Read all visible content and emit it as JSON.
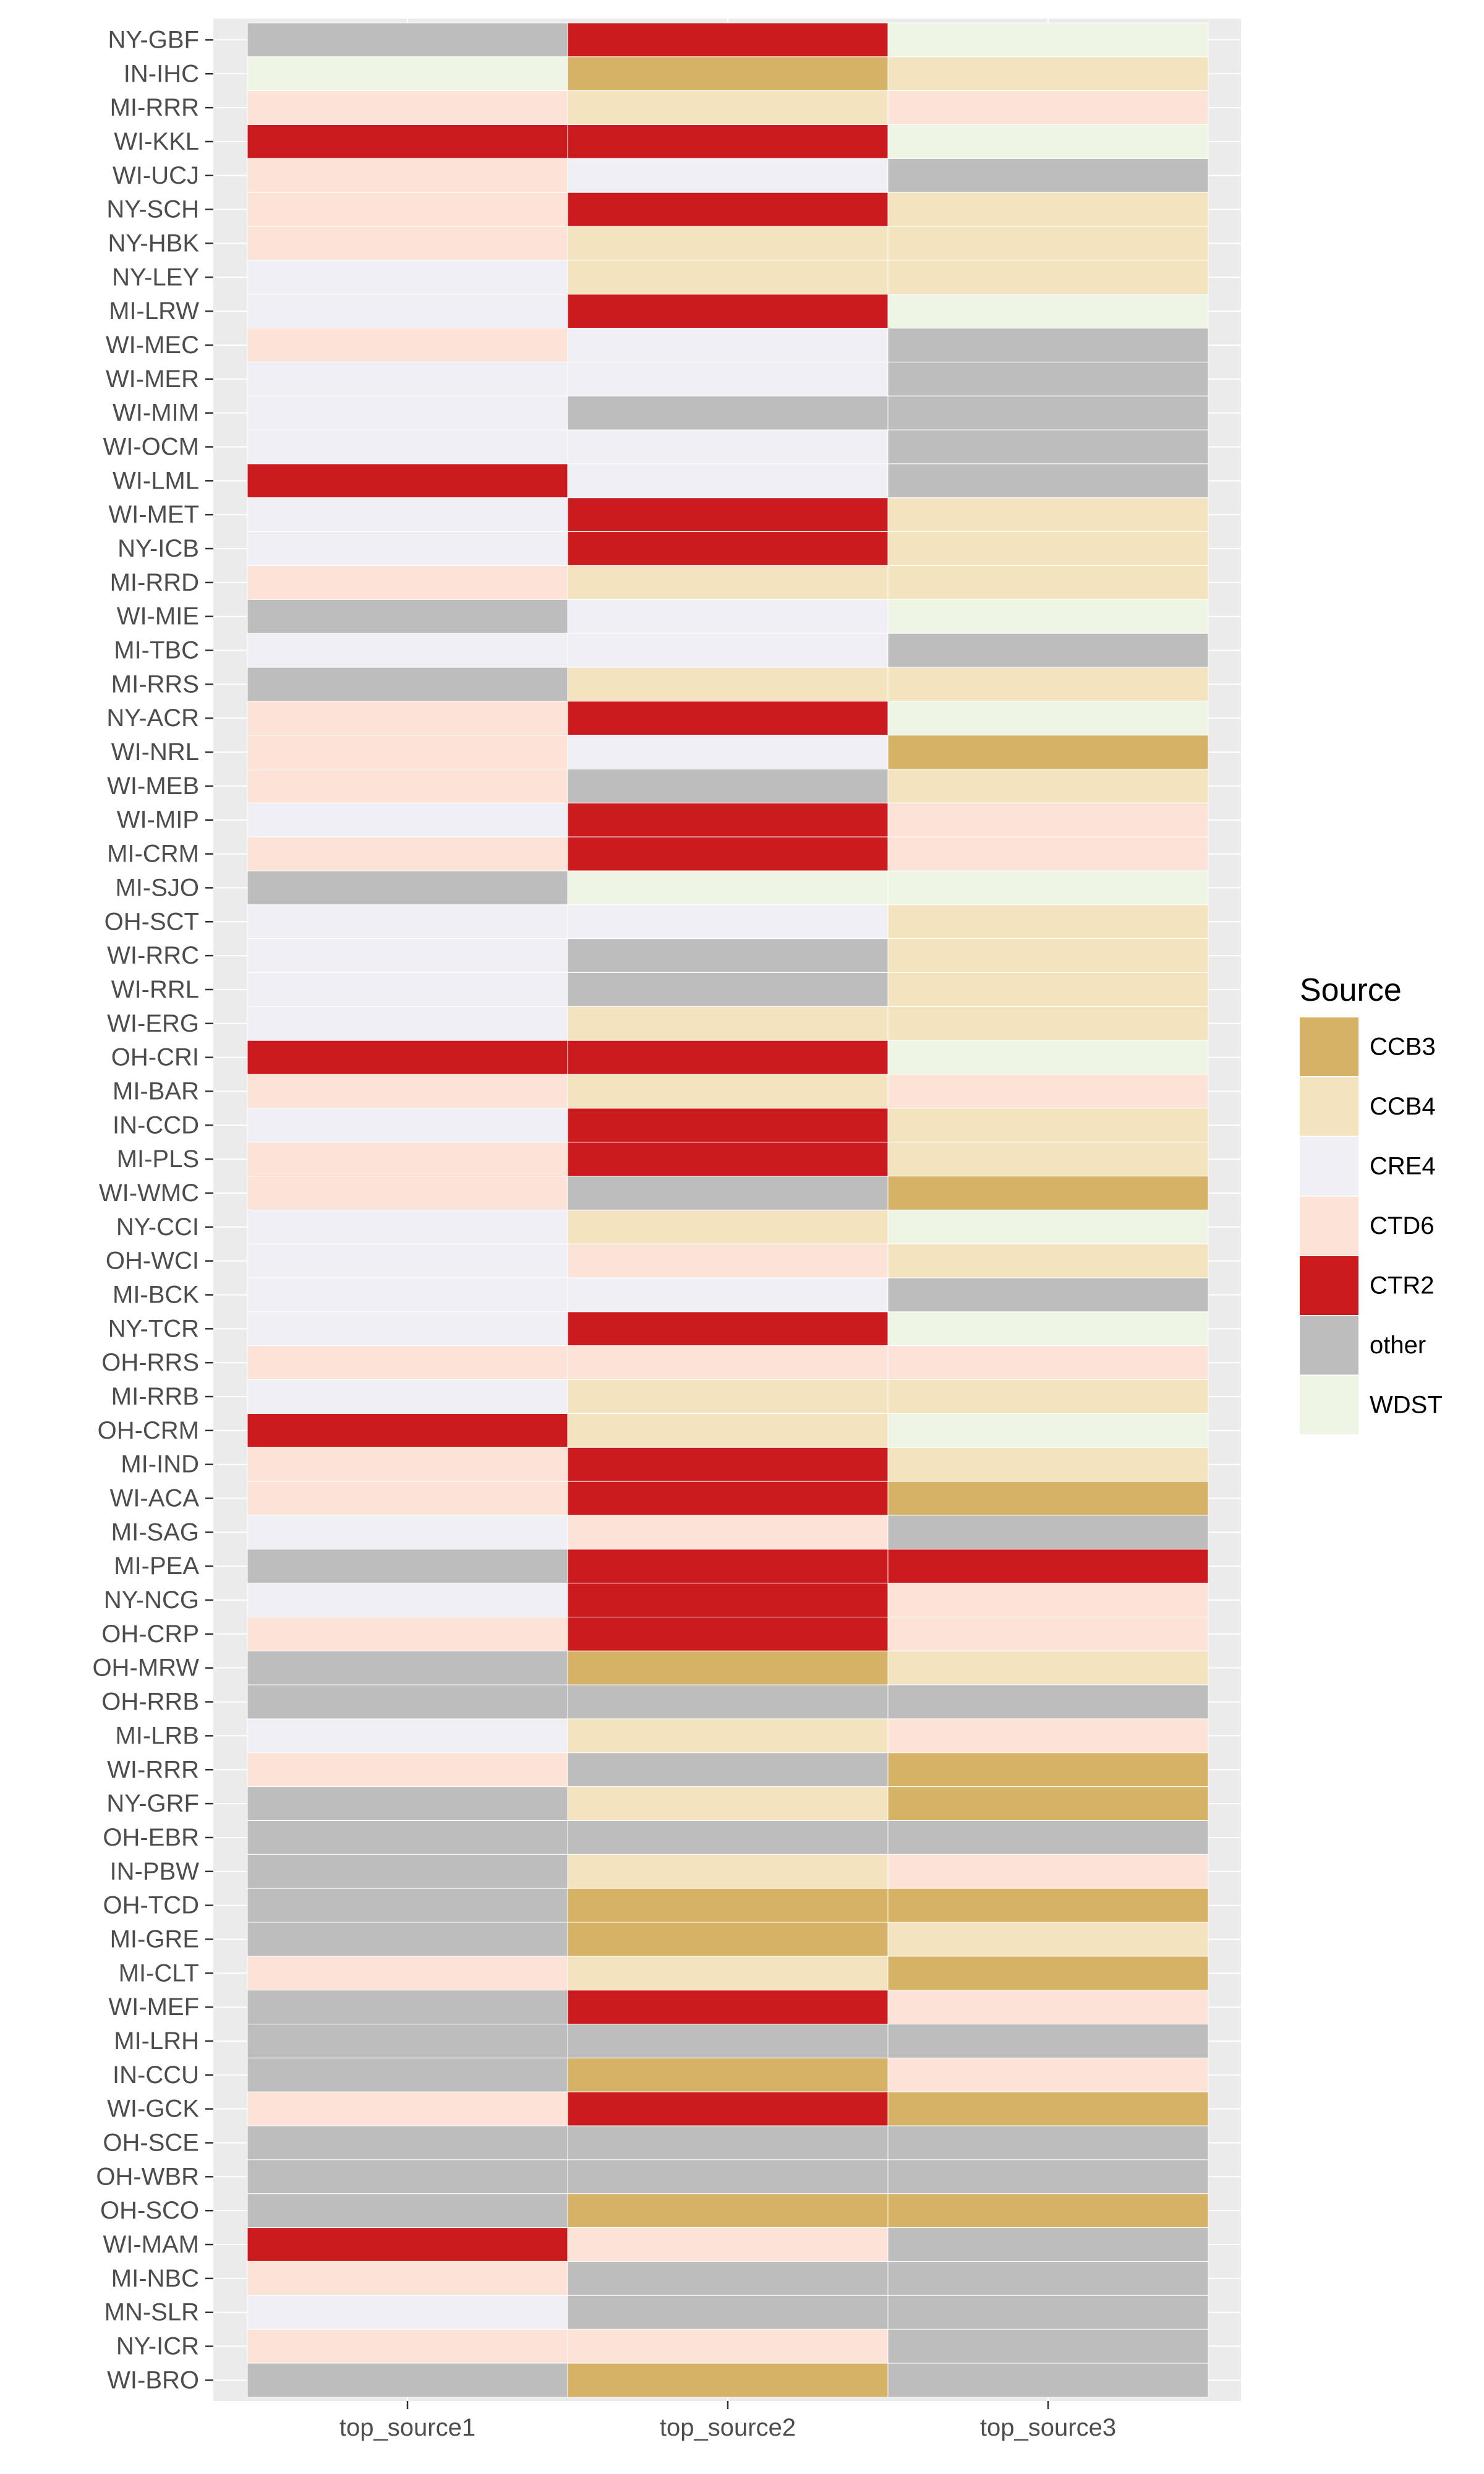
{
  "chart_data": {
    "type": "heatmap",
    "x": [
      "top_source1",
      "top_source2",
      "top_source3"
    ],
    "y": [
      "NY-GBF",
      "IN-IHC",
      "MI-RRR",
      "WI-KKL",
      "WI-UCJ",
      "NY-SCH",
      "NY-HBK",
      "NY-LEY",
      "MI-LRW",
      "WI-MEC",
      "WI-MER",
      "WI-MIM",
      "WI-OCM",
      "WI-LML",
      "WI-MET",
      "NY-ICB",
      "MI-RRD",
      "WI-MIE",
      "MI-TBC",
      "MI-RRS",
      "NY-ACR",
      "WI-NRL",
      "WI-MEB",
      "WI-MIP",
      "MI-CRM",
      "MI-SJO",
      "OH-SCT",
      "WI-RRC",
      "WI-RRL",
      "WI-ERG",
      "OH-CRI",
      "MI-BAR",
      "IN-CCD",
      "MI-PLS",
      "WI-WMC",
      "NY-CCI",
      "OH-WCI",
      "MI-BCK",
      "NY-TCR",
      "OH-RRS",
      "MI-RRB",
      "OH-CRM",
      "MI-IND",
      "WI-ACA",
      "MI-SAG",
      "MI-PEA",
      "NY-NCG",
      "OH-CRP",
      "OH-MRW",
      "OH-RRB",
      "MI-LRB",
      "WI-RRR",
      "NY-GRF",
      "OH-EBR",
      "IN-PBW",
      "OH-TCD",
      "MI-GRE",
      "MI-CLT",
      "WI-MEF",
      "MI-LRH",
      "IN-CCU",
      "WI-GCK",
      "OH-SCE",
      "OH-WBR",
      "OH-SCO",
      "WI-MAM",
      "MI-NBC",
      "MN-SLR",
      "NY-ICR",
      "WI-BRO"
    ],
    "cells": [
      [
        "other",
        "CTR2",
        "WDST"
      ],
      [
        "WDST",
        "CCB3",
        "CCB4"
      ],
      [
        "CTD6",
        "CCB4",
        "CTD6"
      ],
      [
        "CTR2",
        "CTR2",
        "WDST"
      ],
      [
        "CTD6",
        "CRE4",
        "other"
      ],
      [
        "CTD6",
        "CTR2",
        "CCB4"
      ],
      [
        "CTD6",
        "CCB4",
        "CCB4"
      ],
      [
        "CRE4",
        "CCB4",
        "CCB4"
      ],
      [
        "CRE4",
        "CTR2",
        "WDST"
      ],
      [
        "CTD6",
        "CRE4",
        "other"
      ],
      [
        "CRE4",
        "CRE4",
        "other"
      ],
      [
        "CRE4",
        "other",
        "other"
      ],
      [
        "CRE4",
        "CRE4",
        "other"
      ],
      [
        "CTR2",
        "CRE4",
        "other"
      ],
      [
        "CRE4",
        "CTR2",
        "CCB4"
      ],
      [
        "CRE4",
        "CTR2",
        "CCB4"
      ],
      [
        "CTD6",
        "CCB4",
        "CCB4"
      ],
      [
        "other",
        "CRE4",
        "WDST"
      ],
      [
        "CRE4",
        "CRE4",
        "other"
      ],
      [
        "other",
        "CCB4",
        "CCB4"
      ],
      [
        "CTD6",
        "CTR2",
        "WDST"
      ],
      [
        "CTD6",
        "CRE4",
        "CCB3"
      ],
      [
        "CTD6",
        "other",
        "CCB4"
      ],
      [
        "CRE4",
        "CTR2",
        "CTD6"
      ],
      [
        "CTD6",
        "CTR2",
        "CTD6"
      ],
      [
        "other",
        "WDST",
        "WDST"
      ],
      [
        "CRE4",
        "CRE4",
        "CCB4"
      ],
      [
        "CRE4",
        "other",
        "CCB4"
      ],
      [
        "CRE4",
        "other",
        "CCB4"
      ],
      [
        "CRE4",
        "CCB4",
        "CCB4"
      ],
      [
        "CTR2",
        "CTR2",
        "WDST"
      ],
      [
        "CTD6",
        "CCB4",
        "CTD6"
      ],
      [
        "CRE4",
        "CTR2",
        "CCB4"
      ],
      [
        "CTD6",
        "CTR2",
        "CCB4"
      ],
      [
        "CTD6",
        "other",
        "CCB3"
      ],
      [
        "CRE4",
        "CCB4",
        "WDST"
      ],
      [
        "CRE4",
        "CTD6",
        "CCB4"
      ],
      [
        "CRE4",
        "CRE4",
        "other"
      ],
      [
        "CRE4",
        "CTR2",
        "WDST"
      ],
      [
        "CTD6",
        "CTD6",
        "CTD6"
      ],
      [
        "CRE4",
        "CCB4",
        "CCB4"
      ],
      [
        "CTR2",
        "CCB4",
        "WDST"
      ],
      [
        "CTD6",
        "CTR2",
        "CCB4"
      ],
      [
        "CTD6",
        "CTR2",
        "CCB3"
      ],
      [
        "CRE4",
        "CTD6",
        "other"
      ],
      [
        "other",
        "CTR2",
        "CTR2"
      ],
      [
        "CRE4",
        "CTR2",
        "CTD6"
      ],
      [
        "CTD6",
        "CTR2",
        "CTD6"
      ],
      [
        "other",
        "CCB3",
        "CCB4"
      ],
      [
        "other",
        "other",
        "other"
      ],
      [
        "CRE4",
        "CCB4",
        "CTD6"
      ],
      [
        "CTD6",
        "other",
        "CCB3"
      ],
      [
        "other",
        "CCB4",
        "CCB3"
      ],
      [
        "other",
        "other",
        "other"
      ],
      [
        "other",
        "CCB4",
        "CTD6"
      ],
      [
        "other",
        "CCB3",
        "CCB3"
      ],
      [
        "other",
        "CCB3",
        "CCB4"
      ],
      [
        "CTD6",
        "CCB4",
        "CCB3"
      ],
      [
        "other",
        "CTR2",
        "CTD6"
      ],
      [
        "other",
        "other",
        "other"
      ],
      [
        "other",
        "CCB3",
        "CTD6"
      ],
      [
        "CTD6",
        "CTR2",
        "CCB3"
      ],
      [
        "other",
        "other",
        "other"
      ],
      [
        "other",
        "other",
        "other"
      ],
      [
        "other",
        "CCB3",
        "CCB3"
      ],
      [
        "CTR2",
        "CTD6",
        "other"
      ],
      [
        "CTD6",
        "other",
        "other"
      ],
      [
        "CRE4",
        "other",
        "other"
      ],
      [
        "CTD6",
        "CTD6",
        "other"
      ],
      [
        "other",
        "CCB3",
        "other"
      ]
    ],
    "legend": {
      "title": "Source",
      "position": "right",
      "entries": [
        {
          "label": "CCB3",
          "color": "#d6b266"
        },
        {
          "label": "CCB4",
          "color": "#f3e4bf"
        },
        {
          "label": "CRE4",
          "color": "#f0eff5"
        },
        {
          "label": "CTD6",
          "color": "#fde2d7"
        },
        {
          "label": "CTR2",
          "color": "#cc1b1f"
        },
        {
          "label": "other",
          "color": "#bdbdbd"
        },
        {
          "label": "WDST",
          "color": "#eef5e5"
        }
      ]
    },
    "grid": true,
    "panel_background": "#ebebeb"
  }
}
